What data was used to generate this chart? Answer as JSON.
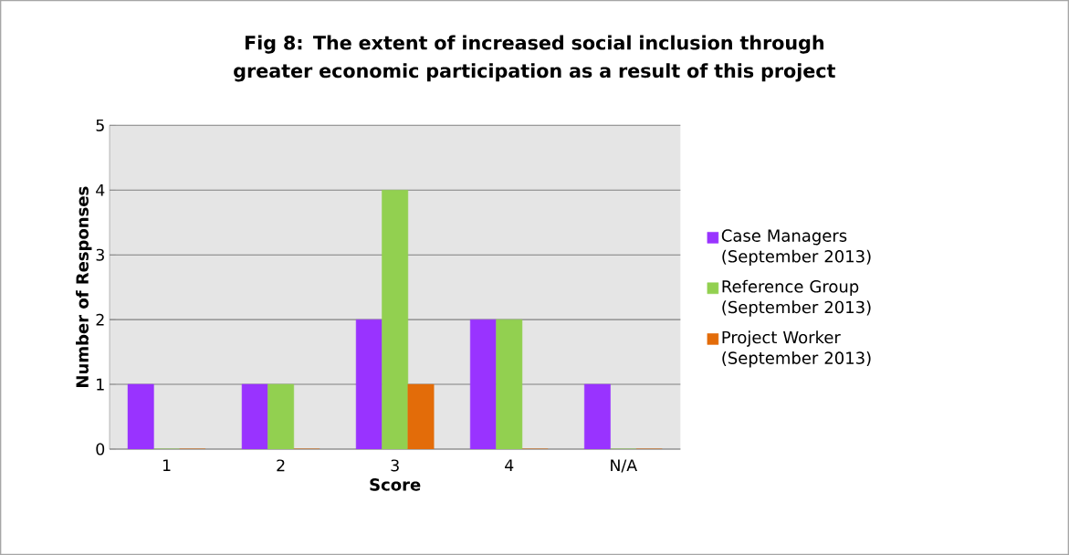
{
  "chart_data": {
    "type": "bar",
    "title": "Fig 8: The extent of increased social inclusion through greater economic participation as a result of this project",
    "xlabel": "Score",
    "ylabel": "Number of Responses",
    "categories": [
      "1",
      "2",
      "3",
      "4",
      "N/A"
    ],
    "series": [
      {
        "name": "Case Managers (September 2013)",
        "color": "#9933ff",
        "values": [
          1,
          1,
          2,
          2,
          1
        ]
      },
      {
        "name": "Reference Group (September 2013)",
        "color": "#92d050",
        "values": [
          0,
          1,
          4,
          2,
          0
        ]
      },
      {
        "name": "Project Worker (September 2013)",
        "color": "#e36c09",
        "values": [
          0,
          0,
          1,
          0,
          0
        ]
      }
    ],
    "ylim": [
      0,
      5
    ],
    "yticks": [
      0,
      1,
      2,
      3,
      4,
      5
    ],
    "grid": "y",
    "legend": "right"
  }
}
